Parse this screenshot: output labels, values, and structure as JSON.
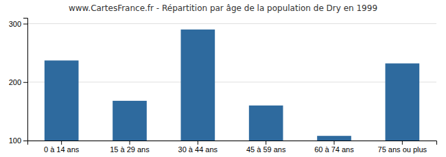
{
  "chart_data": {
    "type": "bar",
    "title": "www.CartesFrance.fr - Répartition par âge de la population de Dry en 1999",
    "categories": [
      "0 à 14 ans",
      "15 à 29 ans",
      "30 à 44 ans",
      "45 à 59 ans",
      "60 à 74 ans",
      "75 ans ou plus"
    ],
    "values": [
      237,
      168,
      290,
      160,
      108,
      232
    ],
    "color": "#2e6a9e",
    "ylim": [
      100,
      310
    ],
    "yticks": [
      100,
      200,
      300
    ],
    "grid": true
  }
}
